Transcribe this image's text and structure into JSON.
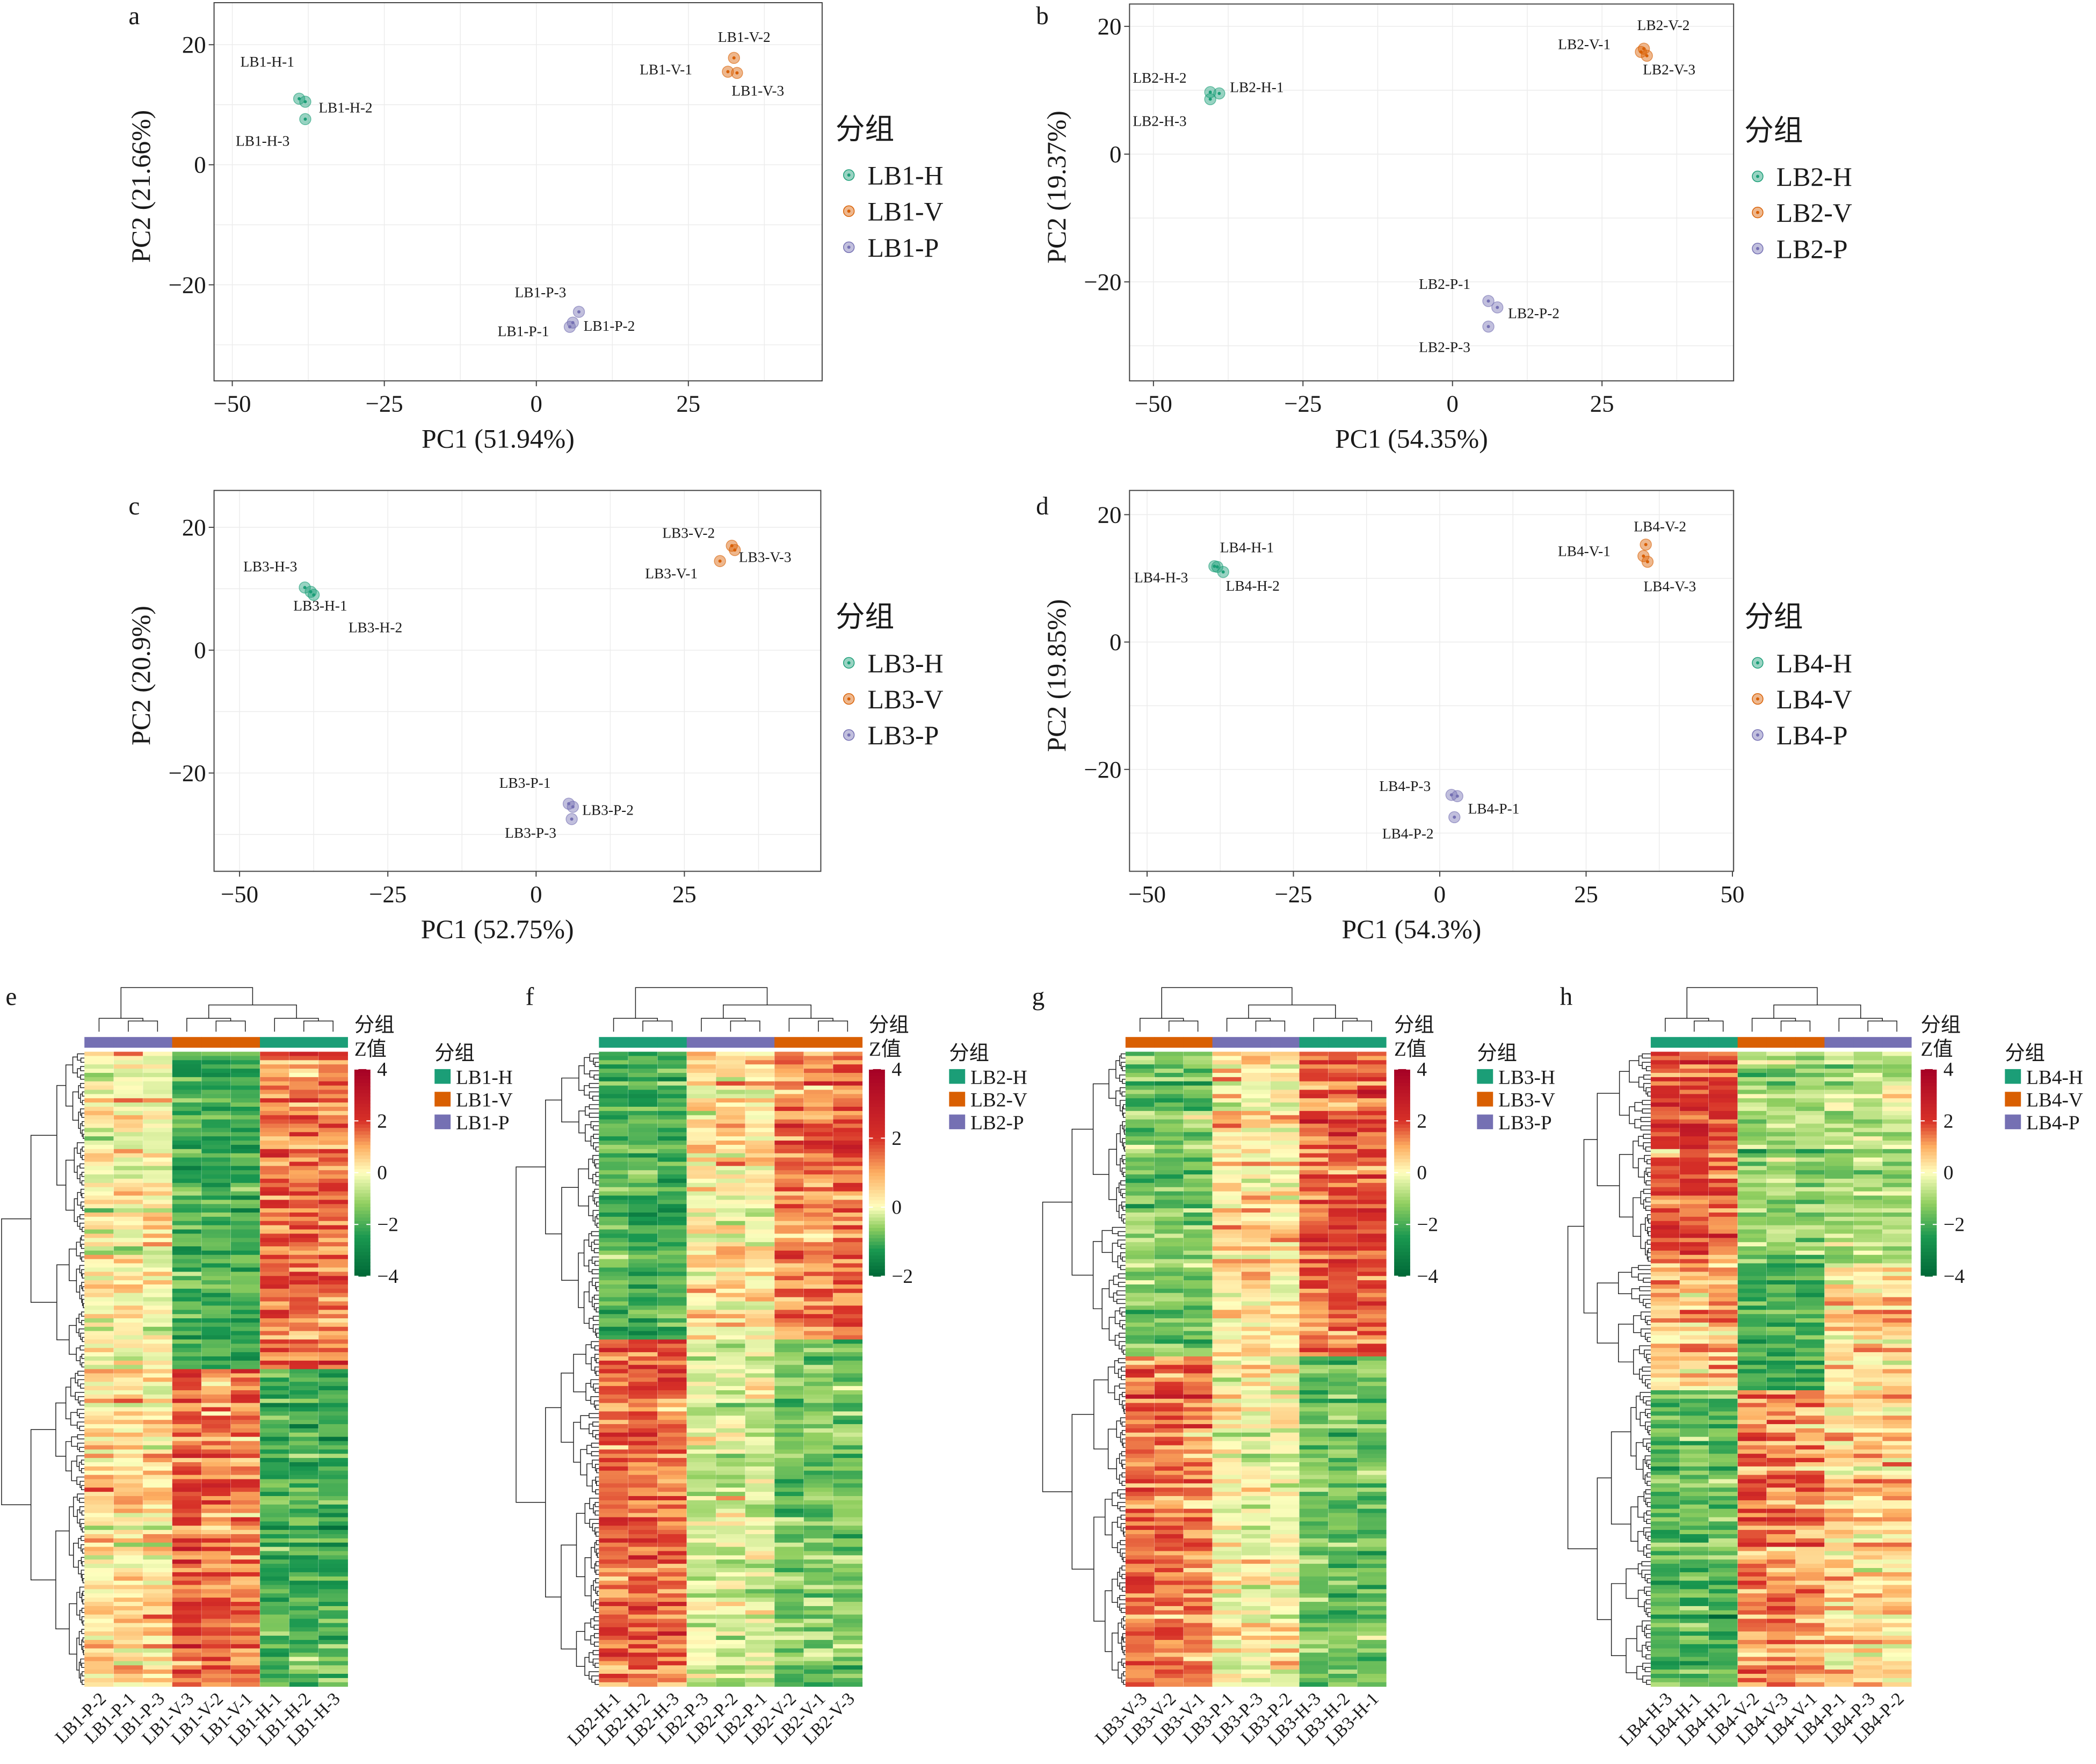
{
  "colors": {
    "H": "#1b9e77",
    "V": "#d95f02",
    "P": "#7570b3"
  },
  "chart_data": [
    {
      "panel": "a",
      "type": "scatter",
      "xlabel": "PC1 (51.94%)",
      "ylabel": "PC2 (21.66%)",
      "xlim": [
        -53,
        47
      ],
      "ylim": [
        -36,
        27
      ],
      "xticks": [
        -50,
        -25,
        0,
        25
      ],
      "yticks": [
        20,
        0,
        -20
      ],
      "grid": true,
      "legend": {
        "title": "分组",
        "placement": "right",
        "entries": [
          "LB1-H",
          "LB1-V",
          "LB1-P"
        ]
      },
      "points": [
        {
          "label": "LB1-H-1",
          "group": "H",
          "x": -39,
          "y": 11
        },
        {
          "label": "LB1-H-2",
          "group": "H",
          "x": -38,
          "y": 10.5
        },
        {
          "label": "LB1-H-3",
          "group": "H",
          "x": -38,
          "y": 7.6
        },
        {
          "label": "LB1-V-1",
          "group": "V",
          "x": 31.5,
          "y": 15.5
        },
        {
          "label": "LB1-V-2",
          "group": "V",
          "x": 32.5,
          "y": 17.8
        },
        {
          "label": "LB1-V-3",
          "group": "V",
          "x": 33,
          "y": 15.3
        },
        {
          "label": "LB1-P-1",
          "group": "P",
          "x": 5.5,
          "y": -27
        },
        {
          "label": "LB1-P-2",
          "group": "P",
          "x": 6,
          "y": -26.3
        },
        {
          "label": "LB1-P-3",
          "group": "P",
          "x": 7,
          "y": -24.5
        }
      ]
    },
    {
      "panel": "b",
      "type": "scatter",
      "xlabel": "PC1 (54.35%)",
      "ylabel": "PC2 (19.37%)",
      "xlim": [
        -54,
        47
      ],
      "ylim": [
        -35.5,
        23.5
      ],
      "xticks": [
        -50,
        -25,
        0,
        25
      ],
      "yticks": [
        20,
        0,
        -20
      ],
      "grid": true,
      "legend": {
        "title": "分组",
        "placement": "right",
        "entries": [
          "LB2-H",
          "LB2-V",
          "LB2-P"
        ]
      },
      "points": [
        {
          "label": "LB2-H-1",
          "group": "H",
          "x": -39,
          "y": 9.5
        },
        {
          "label": "LB2-H-2",
          "group": "H",
          "x": -40.5,
          "y": 9.7
        },
        {
          "label": "LB2-H-3",
          "group": "H",
          "x": -40.5,
          "y": 8.6
        },
        {
          "label": "LB2-V-1",
          "group": "V",
          "x": 31.5,
          "y": 16
        },
        {
          "label": "LB2-V-2",
          "group": "V",
          "x": 32,
          "y": 16.5
        },
        {
          "label": "LB2-V-3",
          "group": "V",
          "x": 32.5,
          "y": 15.4
        },
        {
          "label": "LB2-P-1",
          "group": "P",
          "x": 6,
          "y": -23
        },
        {
          "label": "LB2-P-2",
          "group": "P",
          "x": 7.5,
          "y": -24
        },
        {
          "label": "LB2-P-3",
          "group": "P",
          "x": 6,
          "y": -27
        }
      ]
    },
    {
      "panel": "c",
      "type": "scatter",
      "xlabel": "PC1 (52.75%)",
      "ylabel": "PC2 (20.9%)",
      "xlim": [
        -54.3,
        48
      ],
      "ylim": [
        -36,
        26
      ],
      "xticks": [
        -50,
        -25,
        0,
        25
      ],
      "yticks": [
        20,
        0,
        -20
      ],
      "grid": true,
      "legend": {
        "title": "分组",
        "placement": "right",
        "entries": [
          "LB3-H",
          "LB3-V",
          "LB3-P"
        ]
      },
      "points": [
        {
          "label": "LB3-H-1",
          "group": "H",
          "x": -38,
          "y": 9.5
        },
        {
          "label": "LB3-H-2",
          "group": "H",
          "x": -37.5,
          "y": 9
        },
        {
          "label": "LB3-H-3",
          "group": "H",
          "x": -39,
          "y": 10.2
        },
        {
          "label": "LB3-V-1",
          "group": "V",
          "x": 31,
          "y": 14.5
        },
        {
          "label": "LB3-V-2",
          "group": "V",
          "x": 33,
          "y": 17
        },
        {
          "label": "LB3-V-3",
          "group": "V",
          "x": 33.5,
          "y": 16.3
        },
        {
          "label": "LB3-P-1",
          "group": "P",
          "x": 5.5,
          "y": -25
        },
        {
          "label": "LB3-P-2",
          "group": "P",
          "x": 6.2,
          "y": -25.5
        },
        {
          "label": "LB3-P-3",
          "group": "P",
          "x": 6,
          "y": -27.5
        }
      ]
    },
    {
      "panel": "d",
      "type": "scatter",
      "xlabel": "PC1 (54.3%)",
      "ylabel": "PC2 (19.85%)",
      "xlim": [
        -53,
        50.2
      ],
      "ylim": [
        -36,
        23.8
      ],
      "xticks": [
        -50,
        -25,
        0,
        25,
        50
      ],
      "yticks": [
        20,
        0,
        -20
      ],
      "grid": true,
      "legend": {
        "title": "分组",
        "placement": "right",
        "entries": [
          "LB4-H",
          "LB4-V",
          "LB4-P"
        ]
      },
      "points": [
        {
          "label": "LB4-H-1",
          "group": "H",
          "x": -38,
          "y": 11.8
        },
        {
          "label": "LB4-H-2",
          "group": "H",
          "x": -37,
          "y": 11
        },
        {
          "label": "LB4-H-3",
          "group": "H",
          "x": -38.5,
          "y": 11.9
        },
        {
          "label": "LB4-V-1",
          "group": "V",
          "x": 34.8,
          "y": 13.5
        },
        {
          "label": "LB4-V-2",
          "group": "V",
          "x": 35.2,
          "y": 15.3
        },
        {
          "label": "LB4-V-3",
          "group": "V",
          "x": 35.5,
          "y": 12.6
        },
        {
          "label": "LB4-P-1",
          "group": "P",
          "x": 3,
          "y": -24.2
        },
        {
          "label": "LB4-P-2",
          "group": "P",
          "x": 2.5,
          "y": -27.5
        },
        {
          "label": "LB4-P-3",
          "group": "P",
          "x": 2,
          "y": -24
        }
      ]
    },
    {
      "panel": "e",
      "type": "heatmap",
      "columns": [
        "LB1-P-2",
        "LB1-P-1",
        "LB1-P-3",
        "LB1-V-3",
        "LB1-V-2",
        "LB1-V-1",
        "LB1-H-1",
        "LB1-H-2",
        "LB1-H-3"
      ],
      "column_groups": [
        "P",
        "P",
        "P",
        "V",
        "V",
        "V",
        "H",
        "H",
        "H"
      ],
      "annotation_title": "分组",
      "colorbar_title": "Z值",
      "colorbar_range": [
        -4,
        4
      ],
      "colorbar_ticks": [
        4,
        2,
        0,
        -2,
        -4
      ],
      "legend": {
        "title": "分组",
        "entries": [
          {
            "label": "LB1-H",
            "group": "H"
          },
          {
            "label": "LB1-V",
            "group": "V"
          },
          {
            "label": "LB1-P",
            "group": "P"
          }
        ]
      },
      "row_clusters": [
        {
          "share": 0.5,
          "means": [
            0,
            0,
            0,
            -2,
            -2,
            -2,
            1.5,
            1.5,
            1.4
          ]
        },
        {
          "share": 0.5,
          "means": [
            0.3,
            0.3,
            0.3,
            1.5,
            1.3,
            1.3,
            -2,
            -2,
            -2
          ]
        }
      ]
    },
    {
      "panel": "f",
      "type": "heatmap",
      "columns": [
        "LB2-H-1",
        "LB2-H-2",
        "LB2-H-3",
        "LB2-P-3",
        "LB2-P-2",
        "LB2-P-1",
        "LB2-V-2",
        "LB2-V-1",
        "LB2-V-3"
      ],
      "column_groups": [
        "H",
        "H",
        "H",
        "P",
        "P",
        "P",
        "V",
        "V",
        "V"
      ],
      "annotation_title": "分组",
      "colorbar_title": "Z值",
      "colorbar_range": [
        -2,
        4
      ],
      "colorbar_ticks": [
        4,
        2,
        0,
        -2
      ],
      "legend": {
        "title": "分组",
        "entries": [
          {
            "label": "LB2-H",
            "group": "H"
          },
          {
            "label": "LB2-V",
            "group": "V"
          },
          {
            "label": "LB2-P",
            "group": "P"
          }
        ]
      },
      "row_clusters": [
        {
          "share": 0.45,
          "means": [
            -2,
            -2,
            -2,
            0.3,
            0.3,
            0.2,
            1.3,
            1.3,
            1.5
          ]
        },
        {
          "share": 0.55,
          "means": [
            1.5,
            1.5,
            1.4,
            -0.5,
            -0.5,
            -0.5,
            -1.5,
            -1.5,
            -1.5
          ]
        }
      ]
    },
    {
      "panel": "g",
      "type": "heatmap",
      "columns": [
        "LB3-V-3",
        "LB3-V-2",
        "LB3-V-1",
        "LB3-P-1",
        "LB3-P-3",
        "LB3-P-2",
        "LB3-H-3",
        "LB3-H-2",
        "LB3-H-1"
      ],
      "column_groups": [
        "V",
        "V",
        "V",
        "P",
        "P",
        "P",
        "H",
        "H",
        "H"
      ],
      "annotation_title": "分组",
      "colorbar_title": "Z值",
      "colorbar_range": [
        -4,
        4
      ],
      "colorbar_ticks": [
        4,
        2,
        0,
        -2,
        -4
      ],
      "legend": {
        "title": "分组",
        "entries": [
          {
            "label": "LB3-H",
            "group": "H"
          },
          {
            "label": "LB3-V",
            "group": "V"
          },
          {
            "label": "LB3-P",
            "group": "P"
          }
        ]
      },
      "row_clusters": [
        {
          "share": 0.48,
          "means": [
            -1.5,
            -1.6,
            -1.5,
            0.3,
            0.3,
            0.2,
            1.5,
            1.6,
            1.6
          ]
        },
        {
          "share": 0.52,
          "means": [
            1.5,
            1.5,
            1.3,
            0,
            0,
            0,
            -1.5,
            -1.5,
            -1.5
          ]
        }
      ]
    },
    {
      "panel": "h",
      "type": "heatmap",
      "columns": [
        "LB4-H-3",
        "LB4-H-1",
        "LB4-H-2",
        "LB4-V-2",
        "LB4-V-3",
        "LB4-V-1",
        "LB4-P-1",
        "LB4-P-3",
        "LB4-P-2"
      ],
      "column_groups": [
        "H",
        "H",
        "H",
        "V",
        "V",
        "V",
        "P",
        "P",
        "P"
      ],
      "annotation_title": "分组",
      "colorbar_title": "Z值",
      "colorbar_range": [
        -4,
        4
      ],
      "colorbar_ticks": [
        4,
        2,
        0,
        -2,
        -4
      ],
      "legend": {
        "title": "分组",
        "entries": [
          {
            "label": "LB4-H",
            "group": "H"
          },
          {
            "label": "LB4-V",
            "group": "V"
          },
          {
            "label": "LB4-P",
            "group": "P"
          }
        ]
      },
      "row_clusters": [
        {
          "share": 0.33,
          "means": [
            1.8,
            2,
            1.8,
            -1,
            -1,
            -1,
            -0.8,
            -0.8,
            -0.8
          ]
        },
        {
          "share": 0.2,
          "means": [
            0.8,
            0.8,
            0.8,
            -2,
            -2,
            -2,
            0.5,
            0.5,
            0.5
          ]
        },
        {
          "share": 0.47,
          "means": [
            -1.8,
            -1.8,
            -1.8,
            1.3,
            1.3,
            1.1,
            0.5,
            0.5,
            0.4
          ]
        }
      ]
    }
  ]
}
